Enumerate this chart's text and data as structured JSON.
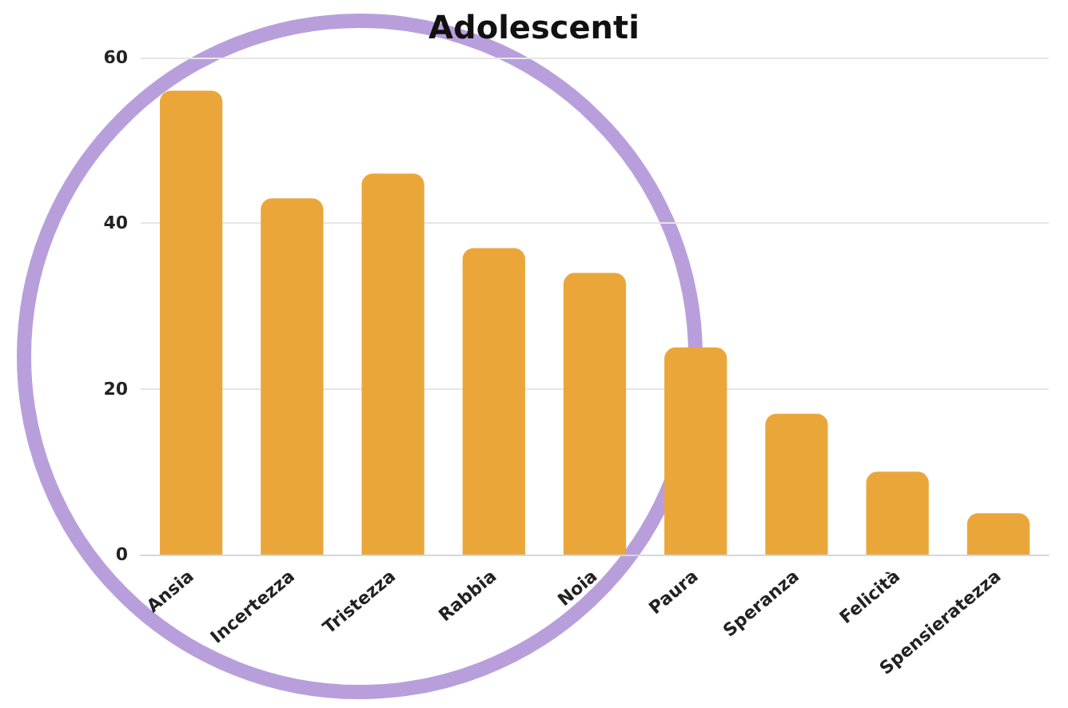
{
  "chart_data": {
    "type": "bar",
    "title": "Adolescenti",
    "categories": [
      "Ansia",
      "Incertezza",
      "Tristezza",
      "Rabbia",
      "Noia",
      "Paura",
      "Speranza",
      "Felicità",
      "Spensieratezza"
    ],
    "values": [
      56,
      43,
      46,
      37,
      34,
      25,
      17,
      10,
      5
    ],
    "color": "#eba63a",
    "ylim": [
      0,
      60
    ],
    "yticks": [
      0,
      20,
      40,
      60
    ],
    "grid": "y"
  }
}
